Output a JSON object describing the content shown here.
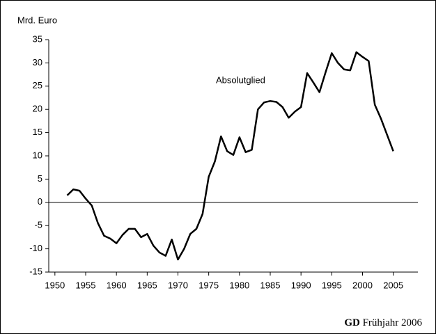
{
  "chart_data": {
    "type": "line",
    "y_axis_label": "Mrd. Euro",
    "annotation": "Absolutglied",
    "footer": {
      "bold": "GD",
      "text": "Frühjahr 2006"
    },
    "x": [
      1952,
      1953,
      1954,
      1955,
      1956,
      1957,
      1958,
      1959,
      1960,
      1961,
      1962,
      1963,
      1964,
      1965,
      1966,
      1967,
      1968,
      1969,
      1970,
      1971,
      1972,
      1973,
      1974,
      1975,
      1976,
      1977,
      1978,
      1979,
      1980,
      1981,
      1982,
      1983,
      1984,
      1985,
      1986,
      1987,
      1988,
      1989,
      1990,
      1991,
      1992,
      1993,
      1994,
      1995,
      1996,
      1997,
      1998,
      1999,
      2000,
      2001,
      2002,
      2003,
      2004,
      2005
    ],
    "series": [
      {
        "name": "Absolutglied",
        "color": "#000000",
        "values": [
          1.5,
          2.8,
          2.5,
          0.8,
          -0.7,
          -4.5,
          -7.2,
          -7.8,
          -8.8,
          -7,
          -5.7,
          -5.7,
          -7.5,
          -6.8,
          -9.3,
          -10.8,
          -11.5,
          -8,
          -12.3,
          -10,
          -6.8,
          -5.7,
          -2.5,
          5.5,
          8.8,
          14.2,
          11,
          10.2,
          14,
          10.8,
          11.3,
          20,
          21.5,
          21.8,
          21.6,
          20.5,
          18.2,
          19.5,
          20.5,
          27.8,
          25.8,
          23.7,
          28,
          32.1,
          30,
          28.6,
          28.4,
          32.3,
          31.3,
          30.4,
          21,
          18,
          14.5,
          11
        ]
      }
    ],
    "xlim": [
      1949,
      2009
    ],
    "xticks": [
      1950,
      1955,
      1960,
      1965,
      1970,
      1975,
      1980,
      1985,
      1990,
      1995,
      2000,
      2005
    ],
    "ylim": [
      -15,
      35
    ],
    "yticks": [
      -15,
      -10,
      -5,
      0,
      5,
      10,
      15,
      20,
      25,
      30,
      35
    ]
  }
}
